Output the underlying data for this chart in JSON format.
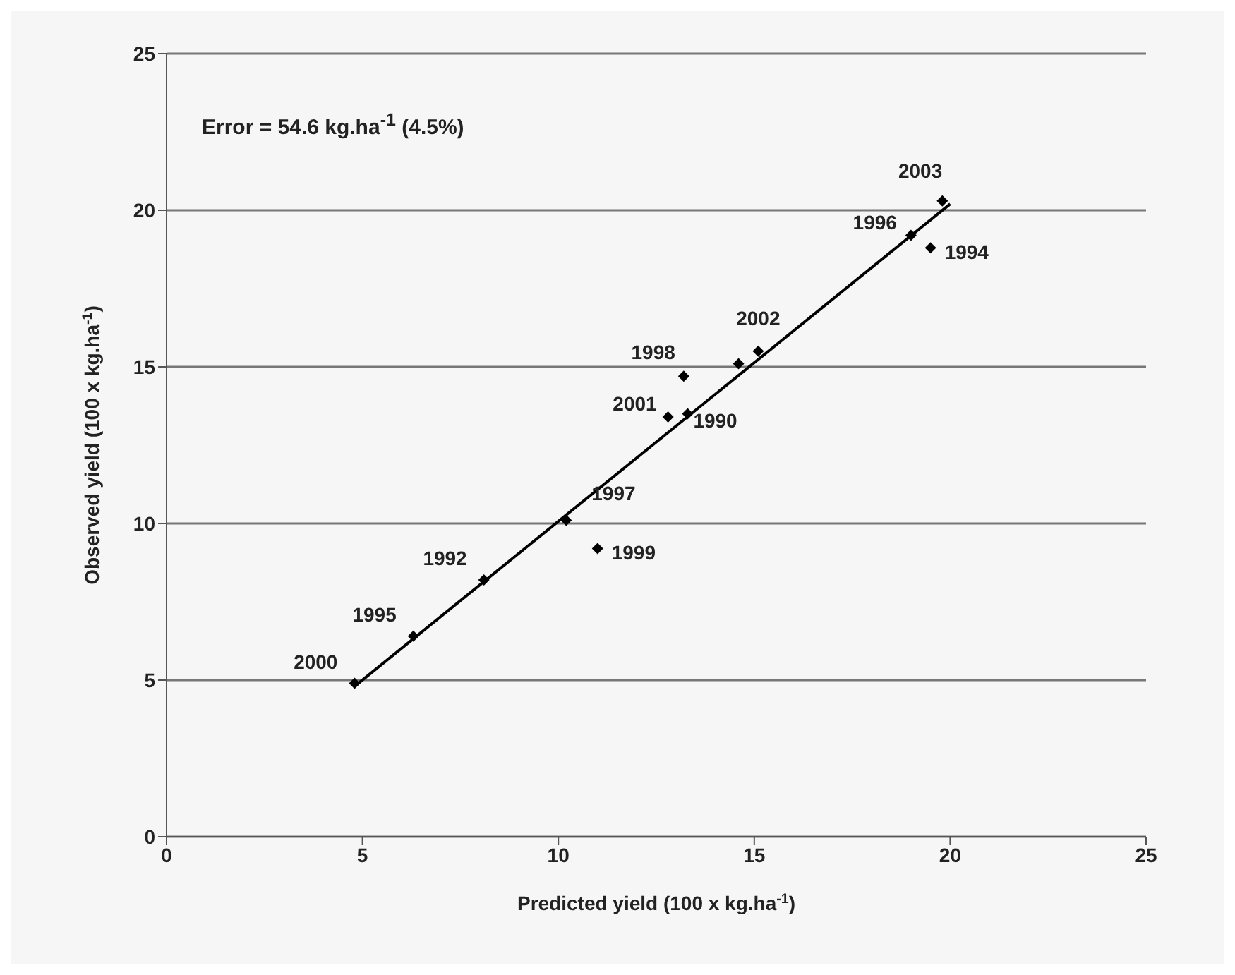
{
  "chart_data": {
    "type": "scatter",
    "xlabel": "Predicted yield (100 x kg.ha$^{-1}$)",
    "ylabel": "Observed yield (100 x kg.ha$^{-1}$)",
    "xlim": [
      0,
      25
    ],
    "xticks": [
      0,
      5,
      10,
      15,
      20,
      25
    ],
    "ylim": [
      0,
      25
    ],
    "yticks": [
      0,
      5,
      10,
      15,
      20,
      25
    ],
    "grid": "y",
    "legend": false,
    "series": [
      {
        "color": "#000000",
        "marker": "diamond",
        "x": [
          4.8,
          6.3,
          8.1,
          10.2,
          11.0,
          12.8,
          13.3,
          13.2,
          14.6,
          15.1,
          19.0,
          19.5,
          19.8
        ],
        "values": [
          4.9,
          6.4,
          8.2,
          10.1,
          9.2,
          13.4,
          13.5,
          14.7,
          15.1,
          15.5,
          19.2,
          18.8,
          20.3
        ]
      },
      {
        "type": "line",
        "color": "#000000",
        "marker": "none",
        "line_style": "solid",
        "x": [
          4.8,
          20.0
        ],
        "values": [
          4.8,
          20.2
        ]
      }
    ],
    "annotations": [
      "Error = 54.6 kg.ha$^{-1}$ (4.5%)",
      {
        "text": "2000",
        "x": 4.8,
        "y": 4.9
      },
      {
        "text": "1995",
        "x": 6.3,
        "y": 6.4
      },
      {
        "text": "1992",
        "x": 8.1,
        "y": 8.2
      },
      {
        "text": "1997",
        "x": 10.2,
        "y": 10.1
      },
      {
        "text": "1999",
        "x": 11.0,
        "y": 9.2
      },
      {
        "text": "2001",
        "x": 12.8,
        "y": 13.4
      },
      {
        "text": "1990",
        "x": 13.3,
        "y": 13.5
      },
      {
        "text": "1998",
        "x": 13.2,
        "y": 14.7
      },
      {
        "text": "2002",
        "x": 15.1,
        "y": 15.5
      },
      {
        "text": "1996",
        "x": 19.0,
        "y": 19.2
      },
      {
        "text": "1994",
        "x": 19.5,
        "y": 18.8
      },
      {
        "text": "2003",
        "x": 19.8,
        "y": 20.3
      }
    ]
  }
}
